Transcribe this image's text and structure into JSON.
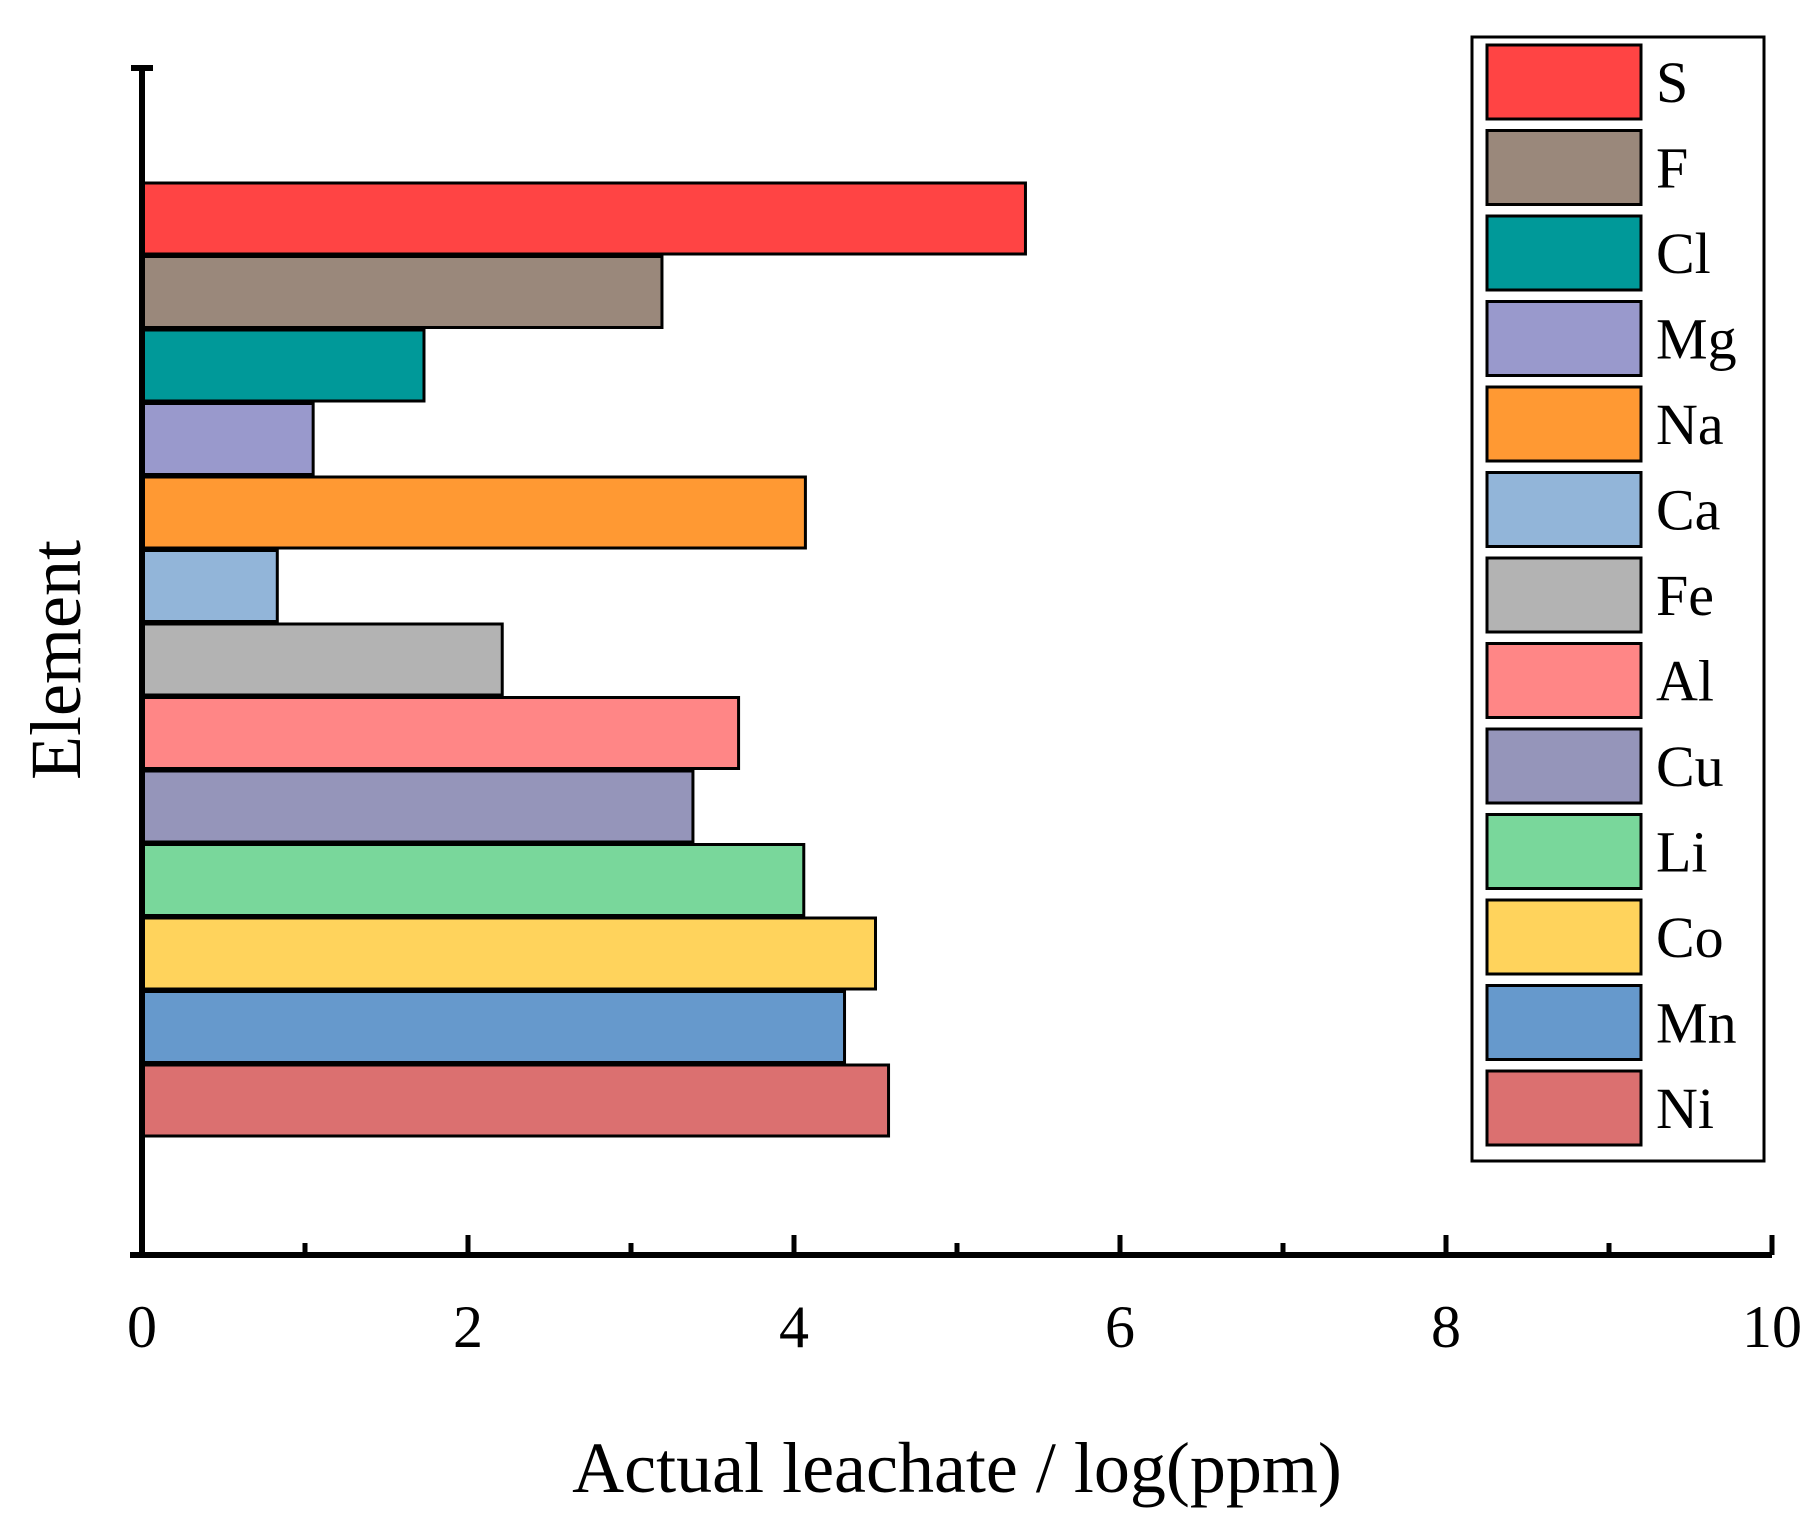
{
  "chart_data": {
    "type": "bar",
    "orientation": "horizontal",
    "title": "",
    "xlabel": "Actual leachate / log(ppm)",
    "ylabel": "Element",
    "xlim": [
      0,
      10
    ],
    "xticks": [
      0,
      2,
      4,
      6,
      8,
      10
    ],
    "grid": false,
    "legend_position": "top-right",
    "series": [
      {
        "name": "S",
        "value": 5.42,
        "color": "#FF4444"
      },
      {
        "name": "F",
        "value": 3.19,
        "color": "#9A887B"
      },
      {
        "name": "Cl",
        "value": 1.73,
        "color": "#009999"
      },
      {
        "name": "Mg",
        "value": 1.05,
        "color": "#9999CC"
      },
      {
        "name": "Na",
        "value": 4.07,
        "color": "#FF9933"
      },
      {
        "name": "Ca",
        "value": 0.83,
        "color": "#92B5D9"
      },
      {
        "name": "Fe",
        "value": 2.21,
        "color": "#B3B3B3"
      },
      {
        "name": "Al",
        "value": 3.66,
        "color": "#FF8686"
      },
      {
        "name": "Cu",
        "value": 3.38,
        "color": "#9595BA"
      },
      {
        "name": "Li",
        "value": 4.06,
        "color": "#79D79B"
      },
      {
        "name": "Co",
        "value": 4.5,
        "color": "#FFD35C"
      },
      {
        "name": "Mn",
        "value": 4.31,
        "color": "#6699CC"
      },
      {
        "name": "Ni",
        "value": 4.58,
        "color": "#DB7070"
      }
    ]
  }
}
